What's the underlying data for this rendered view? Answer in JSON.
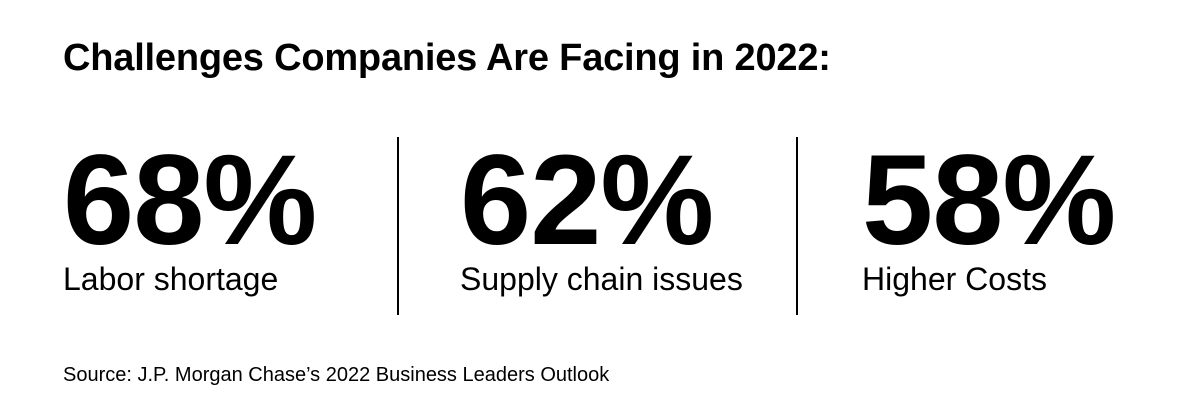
{
  "page": {
    "title": "Challenges Companies Are Facing in 2022:",
    "source": "Source: J.P. Morgan Chase’s 2022 Business Leaders Outlook"
  },
  "stats": [
    {
      "value": "68%",
      "label": "Labor shortage"
    },
    {
      "value": "62%",
      "label": "Supply chain issues"
    },
    {
      "value": "58%",
      "label": "Higher Costs"
    }
  ],
  "colors": {
    "text": "#000000",
    "background": "#ffffff",
    "divider": "#000000"
  },
  "chart_data": {
    "type": "table",
    "title": "Challenges Companies Are Facing in 2022:",
    "categories": [
      "Labor shortage",
      "Supply chain issues",
      "Higher Costs"
    ],
    "values": [
      68,
      62,
      58
    ],
    "unit": "%",
    "source": "Source: J.P. Morgan Chase’s 2022 Business Leaders Outlook",
    "layout": "three large stat figures in a row separated by vertical rules; title top-left; source footnote bottom-left; grid off; no axes"
  }
}
